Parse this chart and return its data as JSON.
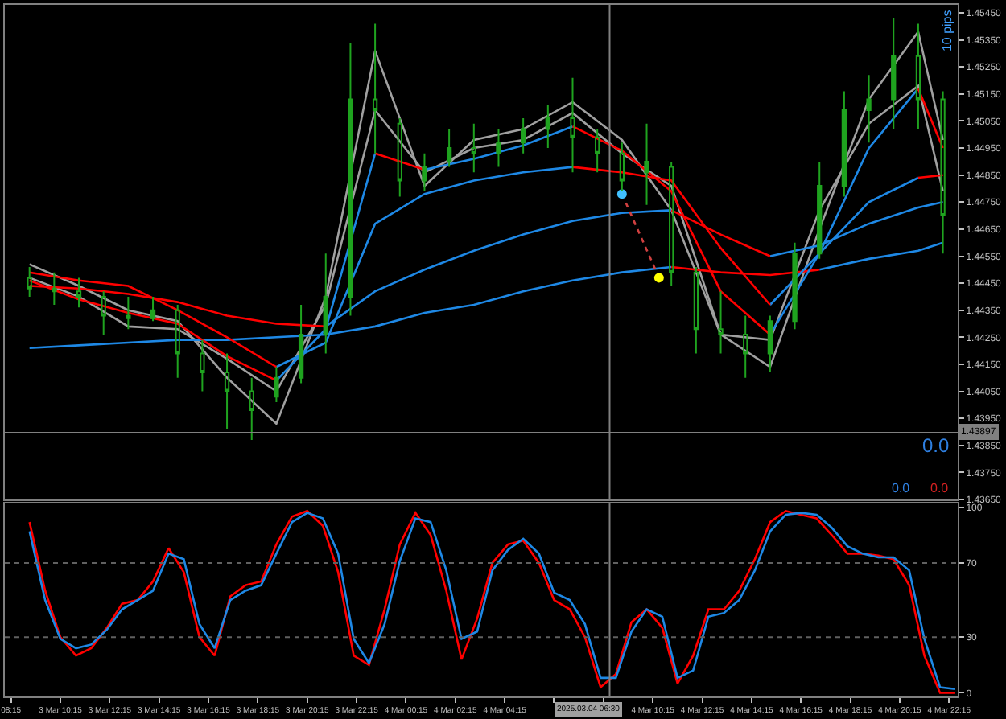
{
  "chart_data": [
    {
      "type": "candlestick",
      "x": [
        "2025-03-03T09:00",
        "2025-03-03T10:00",
        "2025-03-03T11:00",
        "2025-03-03T12:00",
        "2025-03-03T13:00",
        "2025-03-03T14:00",
        "2025-03-03T15:00",
        "2025-03-03T16:00",
        "2025-03-03T17:00",
        "2025-03-03T18:00",
        "2025-03-03T19:00",
        "2025-03-03T20:00",
        "2025-03-03T21:00",
        "2025-03-03T22:00",
        "2025-03-03T23:00",
        "2025-03-04T00:00",
        "2025-03-04T01:00",
        "2025-03-04T02:00",
        "2025-03-04T03:00",
        "2025-03-04T04:00",
        "2025-03-04T05:00",
        "2025-03-04T06:00",
        "2025-03-04T07:00",
        "2025-03-04T08:00",
        "2025-03-04T09:00",
        "2025-03-04T10:00",
        "2025-03-04T11:00",
        "2025-03-04T12:00",
        "2025-03-04T13:00",
        "2025-03-04T14:00",
        "2025-03-04T15:00",
        "2025-03-04T16:00",
        "2025-03-04T17:00",
        "2025-03-04T18:00",
        "2025-03-04T19:00",
        "2025-03-04T20:00",
        "2025-03-04T21:00",
        "2025-03-04T22:00"
      ],
      "ohlc": [
        [
          1.4447,
          1.4451,
          1.444,
          1.4443
        ],
        [
          1.4443,
          1.4449,
          1.4437,
          1.4442
        ],
        [
          1.4442,
          1.4447,
          1.4436,
          1.444
        ],
        [
          1.444,
          1.4442,
          1.4426,
          1.4433
        ],
        [
          1.4433,
          1.444,
          1.4428,
          1.4432
        ],
        [
          1.4432,
          1.444,
          1.4431,
          1.4435
        ],
        [
          1.4435,
          1.4437,
          1.441,
          1.4419
        ],
        [
          1.4419,
          1.4424,
          1.4405,
          1.4412
        ],
        [
          1.4412,
          1.4419,
          1.4391,
          1.4405
        ],
        [
          1.4405,
          1.441,
          1.4387,
          1.4398
        ],
        [
          1.4403,
          1.4414,
          1.4401,
          1.441
        ],
        [
          1.441,
          1.4437,
          1.4408,
          1.4426
        ],
        [
          1.4426,
          1.4456,
          1.4419,
          1.444
        ],
        [
          1.444,
          1.4534,
          1.4433,
          1.4513
        ],
        [
          1.4513,
          1.4541,
          1.4493,
          1.4509
        ],
        [
          1.4504,
          1.4506,
          1.4477,
          1.4483
        ],
        [
          1.4483,
          1.4493,
          1.4479,
          1.4488
        ],
        [
          1.449,
          1.4502,
          1.4488,
          1.4495
        ],
        [
          1.4495,
          1.4504,
          1.4486,
          1.4493
        ],
        [
          1.4493,
          1.4502,
          1.4488,
          1.4497
        ],
        [
          1.4497,
          1.4506,
          1.4493,
          1.4502
        ],
        [
          1.4502,
          1.4511,
          1.4495,
          1.4506
        ],
        [
          1.4506,
          1.4521,
          1.4486,
          1.4499
        ],
        [
          1.4499,
          1.4502,
          1.4486,
          1.4493
        ],
        [
          1.4493,
          1.4497,
          1.4479,
          1.4483
        ],
        [
          1.4486,
          1.4504,
          1.4474,
          1.449
        ],
        [
          1.4488,
          1.449,
          1.4444,
          1.4449
        ],
        [
          1.4449,
          1.4451,
          1.4419,
          1.4428
        ],
        [
          1.4428,
          1.4442,
          1.4419,
          1.4426
        ],
        [
          1.4426,
          1.4433,
          1.441,
          1.4419
        ],
        [
          1.4419,
          1.4433,
          1.4412,
          1.4431
        ],
        [
          1.4431,
          1.446,
          1.4428,
          1.4456
        ],
        [
          1.4456,
          1.449,
          1.4454,
          1.4481
        ],
        [
          1.4481,
          1.4516,
          1.4477,
          1.4509
        ],
        [
          1.4509,
          1.4522,
          1.4497,
          1.4513
        ],
        [
          1.4513,
          1.4543,
          1.4502,
          1.4529
        ],
        [
          1.4529,
          1.4541,
          1.4502,
          1.4513
        ],
        [
          1.4513,
          1.4516,
          1.4456,
          1.447
        ]
      ],
      "color": "#1fa31f",
      "series": [
        {
          "type": "line",
          "color": "#a0a0a0",
          "x": [
            "2025-03-03T09:00",
            "2025-03-03T11:00",
            "2025-03-03T13:00",
            "2025-03-03T15:00",
            "2025-03-03T17:00",
            "2025-03-03T19:00",
            "2025-03-03T21:00",
            "2025-03-03T23:00",
            "2025-03-04T01:00",
            "2025-03-04T03:00",
            "2025-03-04T05:00",
            "2025-03-04T07:00",
            "2025-03-04T09:00",
            "2025-03-04T11:00",
            "2025-03-04T13:00",
            "2025-03-04T15:00",
            "2025-03-04T17:00",
            "2025-03-04T19:00",
            "2025-03-04T21:00",
            "2025-03-04T22:00"
          ],
          "values": [
            1.4452,
            1.4444,
            1.4435,
            1.4431,
            1.441,
            1.4393,
            1.444,
            1.4531,
            1.4481,
            1.4498,
            1.4502,
            1.4512,
            1.4498,
            1.4472,
            1.4426,
            1.4414,
            1.4465,
            1.4513,
            1.4538,
            1.4498
          ]
        },
        {
          "type": "line",
          "color": "#a0a0a0",
          "x": [
            "2025-03-03T09:00",
            "2025-03-03T11:00",
            "2025-03-03T13:00",
            "2025-03-03T15:00",
            "2025-03-03T17:00",
            "2025-03-03T19:00",
            "2025-03-03T21:00",
            "2025-03-03T23:00",
            "2025-03-04T01:00",
            "2025-03-04T03:00",
            "2025-03-04T05:00",
            "2025-03-04T07:00",
            "2025-03-04T09:00",
            "2025-03-04T11:00",
            "2025-03-04T13:00",
            "2025-03-04T15:00",
            "2025-03-04T17:00",
            "2025-03-04T19:00",
            "2025-03-04T21:00",
            "2025-03-04T22:00"
          ],
          "values": [
            1.4447,
            1.444,
            1.4429,
            1.4428,
            1.4417,
            1.4405,
            1.4437,
            1.4509,
            1.4486,
            1.4495,
            1.4498,
            1.4508,
            1.4493,
            1.4481,
            1.4426,
            1.4424,
            1.4472,
            1.4504,
            1.4518,
            1.4479
          ]
        },
        {
          "type": "line",
          "color": "#1e88e5",
          "x": [
            "2025-03-03T09:00",
            "2025-03-03T11:00",
            "2025-03-03T13:00",
            "2025-03-03T15:00",
            "2025-03-03T17:00",
            "2025-03-03T19:00",
            "2025-03-03T21:00",
            "2025-03-03T23:00",
            "2025-03-04T01:00",
            "2025-03-04T03:00",
            "2025-03-04T05:00",
            "2025-03-04T07:00",
            "2025-03-04T09:00",
            "2025-03-04T11:00"
          ],
          "values": [
            1.4421,
            1.4422,
            1.4423,
            1.4424,
            1.4424,
            1.4425,
            1.4426,
            1.4429,
            1.4434,
            1.4437,
            1.4442,
            1.4446,
            1.4449,
            1.4451
          ]
        },
        {
          "type": "line",
          "color": "#1e88e5",
          "x": [
            "2025-03-04T17:00",
            "2025-03-04T19:00",
            "2025-03-04T21:00",
            "2025-03-04T22:00"
          ],
          "values": [
            1.445,
            1.4454,
            1.4457,
            1.446
          ]
        },
        {
          "type": "line",
          "color": "#ff0000",
          "x": [
            "2025-03-04T11:00",
            "2025-03-04T13:00",
            "2025-03-04T15:00",
            "2025-03-04T17:00"
          ],
          "values": [
            1.4451,
            1.4449,
            1.4448,
            1.445
          ]
        },
        {
          "type": "line",
          "color": "#1e88e5",
          "x": [
            "2025-03-03T21:00",
            "2025-03-03T23:00",
            "2025-03-04T01:00",
            "2025-03-04T03:00",
            "2025-03-04T05:00",
            "2025-03-04T07:00",
            "2025-03-04T09:00",
            "2025-03-04T11:00"
          ],
          "values": [
            1.4429,
            1.4442,
            1.445,
            1.4457,
            1.4463,
            1.4468,
            1.4471,
            1.4472
          ]
        },
        {
          "type": "line",
          "color": "#1e88e5",
          "x": [
            "2025-03-04T15:00",
            "2025-03-04T17:00",
            "2025-03-04T19:00",
            "2025-03-04T21:00",
            "2025-03-04T22:00"
          ],
          "values": [
            1.4455,
            1.4459,
            1.4467,
            1.4473,
            1.4475
          ]
        },
        {
          "type": "line",
          "color": "#ff0000",
          "x": [
            "2025-03-03T09:00",
            "2025-03-03T11:00",
            "2025-03-03T13:00",
            "2025-03-03T15:00",
            "2025-03-03T17:00",
            "2025-03-03T19:00",
            "2025-03-03T21:00"
          ],
          "values": [
            1.4444,
            1.4443,
            1.4441,
            1.4438,
            1.4433,
            1.443,
            1.4429
          ]
        },
        {
          "type": "line",
          "color": "#ff0000",
          "x": [
            "2025-03-04T11:00",
            "2025-03-04T13:00",
            "2025-03-04T15:00"
          ],
          "values": [
            1.4472,
            1.4463,
            1.4455
          ]
        },
        {
          "type": "line",
          "color": "#1e88e5",
          "x": [
            "2025-03-03T19:00",
            "2025-03-03T21:00",
            "2025-03-03T23:00",
            "2025-03-04T01:00",
            "2025-03-04T03:00",
            "2025-03-04T05:00",
            "2025-03-04T07:00"
          ],
          "values": [
            1.4414,
            1.4423,
            1.4467,
            1.4478,
            1.4483,
            1.4486,
            1.4488
          ]
        },
        {
          "type": "line",
          "color": "#1e88e5",
          "x": [
            "2025-03-04T15:00",
            "2025-03-04T17:00",
            "2025-03-04T19:00",
            "2025-03-04T21:00"
          ],
          "values": [
            1.4437,
            1.4456,
            1.4475,
            1.4484
          ]
        },
        {
          "type": "line",
          "color": "#ff0000",
          "x": [
            "2025-03-03T09:00",
            "2025-03-03T11:00",
            "2025-03-03T13:00",
            "2025-03-03T15:00",
            "2025-03-03T17:00",
            "2025-03-03T19:00"
          ],
          "values": [
            1.4449,
            1.4446,
            1.4444,
            1.4435,
            1.4425,
            1.4414
          ]
        },
        {
          "type": "line",
          "color": "#ff0000",
          "x": [
            "2025-03-04T07:00",
            "2025-03-04T09:00",
            "2025-03-04T11:00",
            "2025-03-04T13:00",
            "2025-03-04T15:00"
          ],
          "values": [
            1.4488,
            1.4486,
            1.4483,
            1.4458,
            1.4437
          ]
        },
        {
          "type": "line",
          "color": "#ff0000",
          "x": [
            "2025-03-04T21:00",
            "2025-03-04T22:00"
          ],
          "values": [
            1.4484,
            1.4485
          ]
        },
        {
          "type": "line",
          "color": "#1e88e5",
          "x": [
            "2025-03-03T19:00",
            "2025-03-03T21:00",
            "2025-03-03T23:00"
          ],
          "values": [
            1.4409,
            1.4428,
            1.4493
          ]
        },
        {
          "type": "line",
          "color": "#1e88e5",
          "x": [
            "2025-03-04T01:00",
            "2025-03-04T03:00",
            "2025-03-04T05:00",
            "2025-03-04T07:00"
          ],
          "values": [
            1.4487,
            1.4491,
            1.4496,
            1.4503
          ]
        },
        {
          "type": "line",
          "color": "#1e88e5",
          "x": [
            "2025-03-04T15:00",
            "2025-03-04T17:00",
            "2025-03-04T19:00",
            "2025-03-04T21:00"
          ],
          "values": [
            1.4426,
            1.4456,
            1.4495,
            1.4517
          ]
        },
        {
          "type": "line",
          "color": "#ff0000",
          "x": [
            "2025-03-03T09:00",
            "2025-03-03T11:00",
            "2025-03-03T13:00",
            "2025-03-03T15:00",
            "2025-03-03T17:00",
            "2025-03-03T19:00"
          ],
          "values": [
            1.4446,
            1.4439,
            1.4434,
            1.443,
            1.4418,
            1.4409
          ]
        },
        {
          "type": "line",
          "color": "#ff0000",
          "x": [
            "2025-03-03T23:00",
            "2025-03-04T01:00"
          ],
          "values": [
            1.4493,
            1.4487
          ]
        },
        {
          "type": "line",
          "color": "#ff0000",
          "x": [
            "2025-03-04T07:00",
            "2025-03-04T09:00",
            "2025-03-04T11:00",
            "2025-03-04T13:00",
            "2025-03-04T15:00"
          ],
          "values": [
            1.4503,
            1.4494,
            1.4479,
            1.4442,
            1.4426
          ]
        },
        {
          "type": "line",
          "color": "#ff0000",
          "x": [
            "2025-03-04T21:00",
            "2025-03-04T22:00"
          ],
          "values": [
            1.4517,
            1.4495
          ]
        },
        {
          "type": "line",
          "color": "#d04040",
          "line_style": "dotted",
          "x": [
            "2025-03-04T09:00",
            "2025-03-04T10:30"
          ],
          "values": [
            1.4478,
            1.4447
          ]
        },
        {
          "type": "scatter",
          "marker": "circle",
          "colors": [
            "#40c0ff",
            "#ffff00"
          ],
          "x": [
            "2025-03-04T09:00",
            "2025-03-04T10:30"
          ],
          "values": [
            1.4478,
            1.4447
          ]
        }
      ],
      "xlim": [
        "2025-03-03T08:00",
        "2025-03-04T22:36"
      ],
      "ylim": [
        1.4365,
        1.4548
      ],
      "yticks": [
        {
          "value": 1.4545,
          "label": "1.45450"
        },
        {
          "value": 1.4535,
          "label": "1.45350"
        },
        {
          "value": 1.4525,
          "label": "1.45250"
        },
        {
          "value": 1.4515,
          "label": "1.45150"
        },
        {
          "value": 1.4505,
          "label": "1.45050"
        },
        {
          "value": 1.4495,
          "label": "1.44950"
        },
        {
          "value": 1.4485,
          "label": "1.44850"
        },
        {
          "value": 1.4475,
          "label": "1.44750"
        },
        {
          "value": 1.4465,
          "label": "1.44650"
        },
        {
          "value": 1.4455,
          "label": "1.44550"
        },
        {
          "value": 1.4445,
          "label": "1.44450"
        },
        {
          "value": 1.4435,
          "label": "1.44350"
        },
        {
          "value": 1.4425,
          "label": "1.44250"
        },
        {
          "value": 1.4415,
          "label": "1.44150"
        },
        {
          "value": 1.4405,
          "label": "1.44050"
        },
        {
          "value": 1.4395,
          "label": "1.43950"
        },
        {
          "value": 1.4385,
          "label": "1.43850"
        },
        {
          "value": 1.4375,
          "label": "1.43750"
        },
        {
          "value": 1.4365,
          "label": "1.43650"
        }
      ],
      "tick_labels": "y",
      "ref_lines": [
        {
          "axis": "x",
          "value": "2025-03-04T08:30",
          "color": "#808080"
        },
        {
          "axis": "y",
          "value": 1.43897,
          "label": "1.43897",
          "color": "#808080"
        }
      ],
      "annotations": [
        "10 pips",
        "0.0",
        "0.0",
        "0.0",
        "2025.03.04 06:30"
      ]
    },
    {
      "type": "line",
      "x": [
        "2025-03-03T09:00",
        "2025-03-03T09:38",
        "2025-03-03T10:15",
        "2025-03-03T10:53",
        "2025-03-03T11:30",
        "2025-03-03T12:08",
        "2025-03-03T12:45",
        "2025-03-03T13:23",
        "2025-03-03T14:00",
        "2025-03-03T14:38",
        "2025-03-03T15:15",
        "2025-03-03T15:53",
        "2025-03-03T16:30",
        "2025-03-03T17:08",
        "2025-03-03T17:45",
        "2025-03-03T18:23",
        "2025-03-03T19:00",
        "2025-03-03T19:38",
        "2025-03-03T20:15",
        "2025-03-03T20:53",
        "2025-03-03T21:30",
        "2025-03-03T22:08",
        "2025-03-03T22:45",
        "2025-03-03T23:23",
        "2025-03-04T00:00",
        "2025-03-04T00:38",
        "2025-03-04T01:15",
        "2025-03-04T01:53",
        "2025-03-04T02:30",
        "2025-03-04T03:08",
        "2025-03-04T03:45",
        "2025-03-04T04:23",
        "2025-03-04T05:00",
        "2025-03-04T05:38",
        "2025-03-04T06:15",
        "2025-03-04T06:53",
        "2025-03-04T07:30",
        "2025-03-04T08:08",
        "2025-03-04T08:45",
        "2025-03-04T09:23",
        "2025-03-04T10:00",
        "2025-03-04T10:38",
        "2025-03-04T11:15",
        "2025-03-04T11:53",
        "2025-03-04T12:30",
        "2025-03-04T13:08",
        "2025-03-04T13:45",
        "2025-03-04T14:23",
        "2025-03-04T15:00",
        "2025-03-04T15:38",
        "2025-03-04T16:15",
        "2025-03-04T16:53",
        "2025-03-04T17:30",
        "2025-03-04T18:08",
        "2025-03-04T18:45",
        "2025-03-04T19:23",
        "2025-03-04T20:00",
        "2025-03-04T20:38",
        "2025-03-04T21:15",
        "2025-03-04T21:53",
        "2025-03-04T22:30"
      ],
      "series": [
        {
          "color": "#ff0000",
          "values": [
            92,
            55,
            30,
            20,
            24,
            35,
            48,
            50,
            60,
            78,
            65,
            30,
            20,
            52,
            58,
            60,
            80,
            95,
            98,
            90,
            65,
            20,
            15,
            45,
            80,
            97,
            85,
            55,
            18,
            40,
            70,
            80,
            82,
            70,
            50,
            45,
            30,
            3,
            10,
            38,
            45,
            35,
            5,
            20,
            45,
            45,
            55,
            72,
            92,
            98,
            96,
            94,
            85,
            75,
            75,
            74,
            72,
            58,
            20,
            0,
            0
          ]
        },
        {
          "color": "#1e88e5",
          "values": [
            87,
            50,
            29,
            24,
            26,
            34,
            45,
            50,
            55,
            75,
            72,
            37,
            24,
            50,
            55,
            58,
            75,
            92,
            97,
            94,
            75,
            29,
            16,
            37,
            71,
            94,
            92,
            66,
            29,
            33,
            66,
            77,
            83,
            75,
            54,
            50,
            37,
            8,
            8,
            33,
            45,
            41,
            8,
            12,
            41,
            43,
            50,
            66,
            87,
            96,
            97,
            96,
            89,
            79,
            75,
            73,
            73,
            66,
            29,
            3,
            2
          ]
        }
      ],
      "xlim": [
        "2025-03-03T08:00",
        "2025-03-04T22:36"
      ],
      "xticks": [
        {
          "value": "2025-03-03T08:15",
          "label": "08:15"
        },
        {
          "value": "2025-03-03T10:15",
          "label": "3 Mar 10:15"
        },
        {
          "value": "2025-03-03T12:15",
          "label": "3 Mar 12:15"
        },
        {
          "value": "2025-03-03T14:15",
          "label": "3 Mar 14:15"
        },
        {
          "value": "2025-03-03T16:15",
          "label": "3 Mar 16:15"
        },
        {
          "value": "2025-03-03T18:15",
          "label": "3 Mar 18:15"
        },
        {
          "value": "2025-03-03T20:15",
          "label": "3 Mar 20:15"
        },
        {
          "value": "2025-03-03T22:15",
          "label": "3 Mar 22:15"
        },
        {
          "value": "2025-03-04T00:15",
          "label": "4 Mar 00:15"
        },
        {
          "value": "2025-03-04T02:15",
          "label": "4 Mar 02:15"
        },
        {
          "value": "2025-03-04T04:15",
          "label": "4 Mar 04:15"
        },
        {
          "value": "2025-03-04T06:15",
          "label": null
        },
        {
          "value": "2025-03-04T08:15",
          "label": null
        },
        {
          "value": "2025-03-04T10:15",
          "label": "4 Mar 10:15"
        },
        {
          "value": "2025-03-04T12:15",
          "label": "4 Mar 12:15"
        },
        {
          "value": "2025-03-04T14:15",
          "label": "4 Mar 14:15"
        },
        {
          "value": "2025-03-04T16:15",
          "label": "4 Mar 16:15"
        },
        {
          "value": "2025-03-04T18:15",
          "label": "4 Mar 18:15"
        },
        {
          "value": "2025-03-04T20:15",
          "label": "4 Mar 20:15"
        },
        {
          "value": "2025-03-04T22:15",
          "label": "4 Mar 22:15"
        }
      ],
      "ylim": [
        -2,
        102
      ],
      "yticks": [
        0,
        30,
        70,
        100
      ],
      "ref_lines": [
        {
          "axis": "y",
          "value": 70,
          "color": "#606060",
          "line_style": "dotted"
        },
        {
          "axis": "y",
          "value": 30,
          "color": "#606060",
          "line_style": "dotted"
        },
        {
          "axis": "x",
          "value": "2025-03-04T08:30",
          "color": "#808080"
        }
      ]
    }
  ]
}
